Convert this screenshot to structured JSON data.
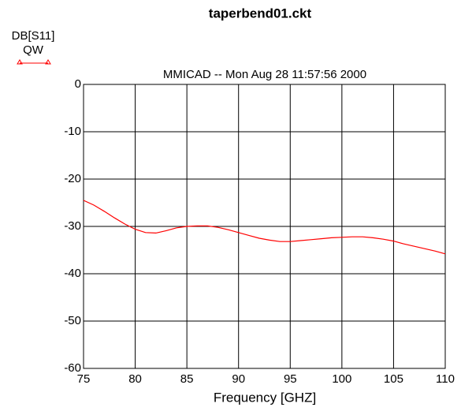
{
  "chart_data": {
    "type": "line",
    "title": "taperbend01.ckt",
    "subtitle": "MMICAD -- Mon Aug 28 11:57:56 2000",
    "xlabel": "Frequency [GHZ]",
    "ylabel": "DB[S11]",
    "grid": true,
    "xlim": [
      75,
      110
    ],
    "xticks": [
      75,
      80,
      85,
      90,
      95,
      100,
      105,
      110
    ],
    "ylim": [
      -60,
      0
    ],
    "yticks": [
      0,
      -10,
      -20,
      -30,
      -40,
      -50,
      -60
    ],
    "x": [
      75,
      76,
      77,
      78,
      79,
      80,
      81,
      82,
      83,
      84,
      85,
      86,
      87,
      88,
      89,
      90,
      91,
      92,
      93,
      94,
      95,
      96,
      97,
      98,
      99,
      100,
      101,
      102,
      103,
      104,
      105,
      106,
      107,
      108,
      109,
      110
    ],
    "series": [
      {
        "name": "QW",
        "color": "#ff0000",
        "values": [
          -24.5,
          -25.5,
          -26.8,
          -28.2,
          -29.5,
          -30.6,
          -31.3,
          -31.4,
          -30.9,
          -30.3,
          -30.0,
          -29.9,
          -29.9,
          -30.2,
          -30.7,
          -31.3,
          -31.9,
          -32.5,
          -32.9,
          -33.2,
          -33.2,
          -33.0,
          -32.8,
          -32.6,
          -32.4,
          -32.3,
          -32.2,
          -32.2,
          -32.4,
          -32.7,
          -33.1,
          -33.7,
          -34.2,
          -34.7,
          -35.2,
          -35.8
        ]
      }
    ]
  }
}
